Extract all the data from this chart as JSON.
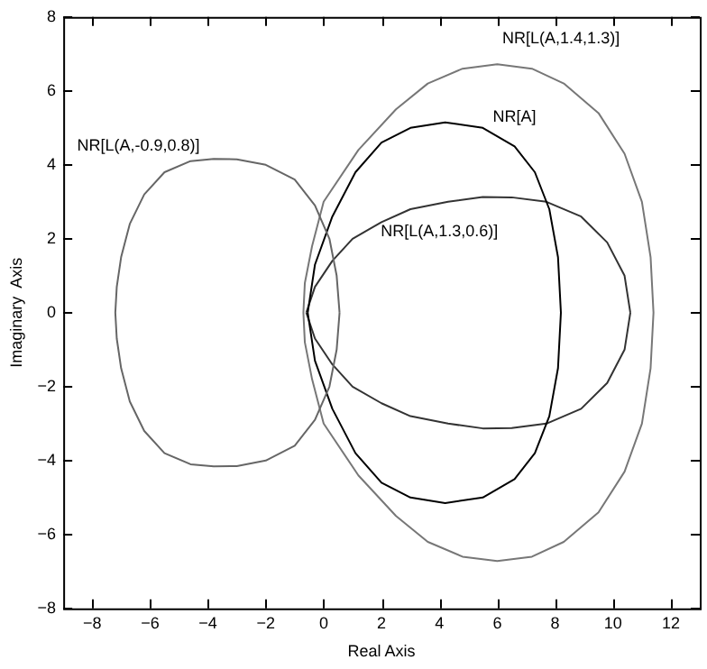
{
  "chart_data": {
    "type": "line",
    "xlabel": "Real Axis",
    "ylabel": "Imaginary  Axis",
    "xlim": [
      -9,
      13
    ],
    "xticks": [
      -8,
      -6,
      -4,
      -2,
      0,
      2,
      4,
      6,
      8,
      10,
      12
    ],
    "ylim": [
      -8,
      8
    ],
    "yticks": [
      -8,
      -6,
      -4,
      -2,
      0,
      2,
      4,
      6,
      8
    ],
    "grid": false,
    "legend": false,
    "marker": "none",
    "line_style": "solid",
    "annotations": [
      "NR[L(A,-0.9,0.8)]",
      "NR[L(A,1.4,1.3)]",
      "NR[A]",
      "NR[L(A,1.3,0.6)]"
    ],
    "series": [
      {
        "color": "#666666",
        "x": [
          -7.2,
          -7.15,
          -7.0,
          -6.7,
          -6.2,
          -5.5,
          -4.6,
          -3.8,
          -3.0,
          -2.0,
          -1.0,
          -0.3,
          0.2,
          0.45,
          0.55,
          null,
          -7.2,
          -7.15,
          -7.0,
          -6.7,
          -6.2,
          -5.5,
          -4.6,
          -3.8,
          -3.0,
          -2.0,
          -1.0,
          -0.3,
          0.2,
          0.45,
          0.55
        ],
        "values": [
          0,
          0.7,
          1.5,
          2.4,
          3.2,
          3.8,
          4.1,
          4.16,
          4.15,
          4.0,
          3.6,
          2.9,
          2,
          1,
          0,
          null,
          0,
          -0.7,
          -1.5,
          -2.4,
          -3.2,
          -3.8,
          -4.1,
          -4.16,
          -4.15,
          -4.0,
          -3.6,
          -2.9,
          -2,
          -1,
          0
        ]
      },
      {
        "color": "#777777",
        "x": [
          -0.7,
          -0.65,
          -0.4,
          0.0,
          1.2,
          2.5,
          3.6,
          4.8,
          6.0,
          7.2,
          8.3,
          9.5,
          10.4,
          11.0,
          11.3,
          11.4,
          null,
          -0.7,
          -0.65,
          -0.4,
          0.0,
          1.2,
          2.5,
          3.6,
          4.8,
          6.0,
          7.2,
          8.3,
          9.5,
          10.4,
          11.0,
          11.3,
          11.4
        ],
        "values": [
          0,
          0.8,
          1.8,
          3.0,
          4.4,
          5.5,
          6.2,
          6.6,
          6.72,
          6.6,
          6.2,
          5.4,
          4.3,
          3,
          1.5,
          0,
          null,
          0,
          -0.8,
          -1.8,
          -3.0,
          -4.4,
          -5.5,
          -6.2,
          -6.6,
          -6.72,
          -6.6,
          -6.2,
          -5.4,
          -4.3,
          -3,
          -1.5,
          0
        ]
      },
      {
        "color": "#000000",
        "x": [
          -0.55,
          -0.3,
          0.3,
          1.1,
          2.0,
          3.0,
          4.2,
          5.5,
          6.6,
          7.3,
          7.8,
          8.1,
          8.2,
          null,
          -0.55,
          -0.3,
          0.3,
          1.1,
          2.0,
          3.0,
          4.2,
          5.5,
          6.6,
          7.3,
          7.8,
          8.1,
          8.2
        ],
        "values": [
          0,
          1.3,
          2.6,
          3.8,
          4.6,
          5.0,
          5.15,
          5.0,
          4.5,
          3.8,
          2.8,
          1.5,
          0,
          null,
          0,
          -1.3,
          -2.6,
          -3.8,
          -4.6,
          -5.0,
          -5.15,
          -5.0,
          -4.5,
          -3.8,
          -2.8,
          -1.5,
          0
        ]
      },
      {
        "color": "#333333",
        "x": [
          -0.6,
          -0.3,
          0.3,
          1.0,
          2.0,
          3.0,
          4.3,
          5.5,
          6.5,
          7.7,
          8.9,
          9.8,
          10.4,
          10.6,
          null,
          -0.6,
          -0.3,
          0.3,
          1.0,
          2.0,
          3.0,
          4.3,
          5.5,
          6.5,
          7.7,
          8.9,
          9.8,
          10.4,
          10.6
        ],
        "values": [
          0,
          0.7,
          1.4,
          2.0,
          2.45,
          2.8,
          3.0,
          3.13,
          3.12,
          3.0,
          2.6,
          1.9,
          1.0,
          0,
          null,
          0,
          -0.7,
          -1.4,
          -2.0,
          -2.45,
          -2.8,
          -3.0,
          -3.13,
          -3.12,
          -3.0,
          -2.6,
          -1.9,
          -1.0,
          0
        ]
      }
    ]
  }
}
